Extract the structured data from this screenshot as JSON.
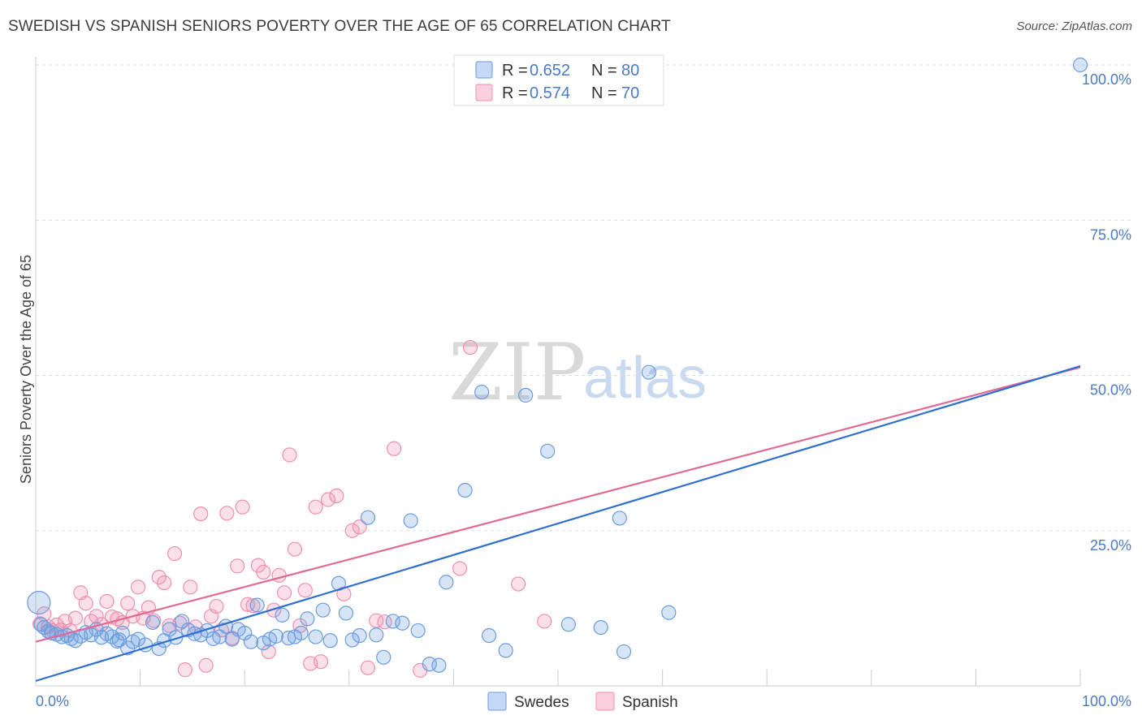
{
  "header": {
    "title": "SWEDISH VS SPANISH SENIORS POVERTY OVER THE AGE OF 65 CORRELATION CHART",
    "source": "Source: ZipAtlas.com"
  },
  "watermark": {
    "zip": "ZIP",
    "atlas": "atlas"
  },
  "legend": {
    "rows": [
      {
        "r_label": "R = ",
        "r_value": "0.652",
        "n_label": "N = ",
        "n_value": "80",
        "color": "#6a9de0"
      },
      {
        "r_label": "R = ",
        "r_value": "0.574",
        "n_label": "N = ",
        "n_value": "70",
        "color": "#ef8fb0"
      }
    ]
  },
  "bottom_legend": {
    "swedes": "Swedes",
    "spanish": "Spanish"
  },
  "chart_data": {
    "type": "scatter",
    "title": "SWEDISH VS SPANISH SENIORS POVERTY OVER THE AGE OF 65 CORRELATION CHART",
    "xlabel": "",
    "ylabel": "Seniors Poverty Over the Age of 65",
    "xlim": [
      0,
      100
    ],
    "ylim": [
      0,
      100
    ],
    "x_tick_labels": [
      "0.0%",
      "100.0%"
    ],
    "y_tick_labels": [
      "25.0%",
      "50.0%",
      "75.0%",
      "100.0%"
    ],
    "y_ticks": [
      25,
      50,
      75,
      100
    ],
    "grid": true,
    "legend_position": "top-center",
    "series": [
      {
        "name": "Swedes",
        "color": "#6a9de0",
        "line_color": "#2f6fd0",
        "trend": {
          "x": [
            0,
            100
          ],
          "y": [
            0.8,
            51.5
          ]
        },
        "points": [
          [
            0.3,
            13.4
          ],
          [
            0.5,
            9.9
          ],
          [
            0.8,
            9.4
          ],
          [
            1.2,
            8.8
          ],
          [
            1.5,
            8.5
          ],
          [
            2.0,
            8.3
          ],
          [
            2.5,
            7.9
          ],
          [
            3.0,
            8.1
          ],
          [
            3.4,
            7.6
          ],
          [
            3.8,
            7.3
          ],
          [
            4.3,
            8.0
          ],
          [
            4.8,
            8.6
          ],
          [
            5.3,
            8.2
          ],
          [
            5.8,
            9.1
          ],
          [
            6.3,
            7.8
          ],
          [
            6.8,
            8.4
          ],
          [
            7.3,
            7.9
          ],
          [
            7.8,
            7.2
          ],
          [
            8.3,
            8.5
          ],
          [
            8.8,
            6.1
          ],
          [
            9.3,
            7.1
          ],
          [
            9.8,
            7.5
          ],
          [
            10.5,
            6.6
          ],
          [
            11.2,
            10.2
          ],
          [
            11.8,
            6.0
          ],
          [
            12.3,
            7.3
          ],
          [
            12.8,
            9.1
          ],
          [
            13.4,
            7.8
          ],
          [
            14.0,
            10.4
          ],
          [
            14.6,
            9.0
          ],
          [
            15.2,
            8.4
          ],
          [
            15.8,
            8.2
          ],
          [
            16.4,
            8.9
          ],
          [
            17.0,
            7.6
          ],
          [
            17.6,
            7.9
          ],
          [
            18.2,
            9.6
          ],
          [
            18.8,
            7.5
          ],
          [
            19.4,
            9.1
          ],
          [
            20.0,
            8.5
          ],
          [
            20.6,
            7.1
          ],
          [
            21.2,
            13.0
          ],
          [
            21.8,
            6.9
          ],
          [
            22.4,
            7.5
          ],
          [
            23.0,
            8.0
          ],
          [
            23.6,
            11.4
          ],
          [
            24.2,
            7.7
          ],
          [
            24.8,
            7.9
          ],
          [
            25.4,
            8.5
          ],
          [
            26.0,
            10.8
          ],
          [
            26.8,
            7.9
          ],
          [
            27.5,
            12.2
          ],
          [
            28.2,
            7.3
          ],
          [
            29.0,
            16.5
          ],
          [
            29.7,
            11.7
          ],
          [
            30.3,
            7.4
          ],
          [
            31.0,
            8.1
          ],
          [
            31.8,
            27.1
          ],
          [
            32.6,
            8.2
          ],
          [
            33.3,
            4.6
          ],
          [
            34.2,
            10.4
          ],
          [
            35.1,
            10.1
          ],
          [
            35.9,
            26.6
          ],
          [
            36.6,
            8.9
          ],
          [
            37.7,
            3.5
          ],
          [
            38.6,
            3.3
          ],
          [
            39.3,
            16.7
          ],
          [
            41.1,
            31.5
          ],
          [
            42.7,
            47.3
          ],
          [
            43.4,
            8.1
          ],
          [
            45.0,
            5.7
          ],
          [
            46.9,
            46.8
          ],
          [
            49.0,
            37.8
          ],
          [
            51.0,
            9.9
          ],
          [
            54.1,
            9.4
          ],
          [
            55.9,
            27.0
          ],
          [
            56.3,
            5.5
          ],
          [
            58.7,
            50.5
          ],
          [
            60.6,
            11.8
          ],
          [
            100.0,
            100.0
          ],
          [
            8.0,
            7.4
          ]
        ]
      },
      {
        "name": "Spanish",
        "color": "#ef8fb0",
        "line_color": "#e06a95",
        "trend": {
          "x": [
            0,
            100
          ],
          "y": [
            7.1,
            51.3
          ]
        },
        "points": [
          [
            0.4,
            10.0
          ],
          [
            0.8,
            11.6
          ],
          [
            1.2,
            9.5
          ],
          [
            1.6,
            8.9
          ],
          [
            2.0,
            9.8
          ],
          [
            2.4,
            9.0
          ],
          [
            2.8,
            10.4
          ],
          [
            3.3,
            8.9
          ],
          [
            3.8,
            10.9
          ],
          [
            4.3,
            15.0
          ],
          [
            4.8,
            13.3
          ],
          [
            5.3,
            10.4
          ],
          [
            5.8,
            11.2
          ],
          [
            6.3,
            9.9
          ],
          [
            6.8,
            13.6
          ],
          [
            7.3,
            11.1
          ],
          [
            7.8,
            10.8
          ],
          [
            8.3,
            10.2
          ],
          [
            8.8,
            13.3
          ],
          [
            9.3,
            11.2
          ],
          [
            9.8,
            15.9
          ],
          [
            10.3,
            10.9
          ],
          [
            10.8,
            12.6
          ],
          [
            11.3,
            10.5
          ],
          [
            11.8,
            17.5
          ],
          [
            12.3,
            16.6
          ],
          [
            12.8,
            9.7
          ],
          [
            13.3,
            21.3
          ],
          [
            13.8,
            10.1
          ],
          [
            14.3,
            2.6
          ],
          [
            14.8,
            15.9
          ],
          [
            15.3,
            9.5
          ],
          [
            15.8,
            27.7
          ],
          [
            16.3,
            3.3
          ],
          [
            16.8,
            11.2
          ],
          [
            17.3,
            12.8
          ],
          [
            17.8,
            9.0
          ],
          [
            18.3,
            27.8
          ],
          [
            18.8,
            7.7
          ],
          [
            19.3,
            19.3
          ],
          [
            19.8,
            28.8
          ],
          [
            20.3,
            13.1
          ],
          [
            20.8,
            12.9
          ],
          [
            21.3,
            19.4
          ],
          [
            21.8,
            18.3
          ],
          [
            22.3,
            5.5
          ],
          [
            22.8,
            12.2
          ],
          [
            23.3,
            17.8
          ],
          [
            23.8,
            15.0
          ],
          [
            24.3,
            37.2
          ],
          [
            24.8,
            22.0
          ],
          [
            25.3,
            9.7
          ],
          [
            25.8,
            15.4
          ],
          [
            26.3,
            3.6
          ],
          [
            26.8,
            28.8
          ],
          [
            27.3,
            3.9
          ],
          [
            28.0,
            30.0
          ],
          [
            28.8,
            30.6
          ],
          [
            29.5,
            14.8
          ],
          [
            30.3,
            25.0
          ],
          [
            31.0,
            25.6
          ],
          [
            31.8,
            2.9
          ],
          [
            32.6,
            10.5
          ],
          [
            33.4,
            10.3
          ],
          [
            34.3,
            38.2
          ],
          [
            36.8,
            2.5
          ],
          [
            40.6,
            18.9
          ],
          [
            41.6,
            54.5
          ],
          [
            46.2,
            16.4
          ],
          [
            48.7,
            10.4
          ]
        ]
      }
    ]
  }
}
